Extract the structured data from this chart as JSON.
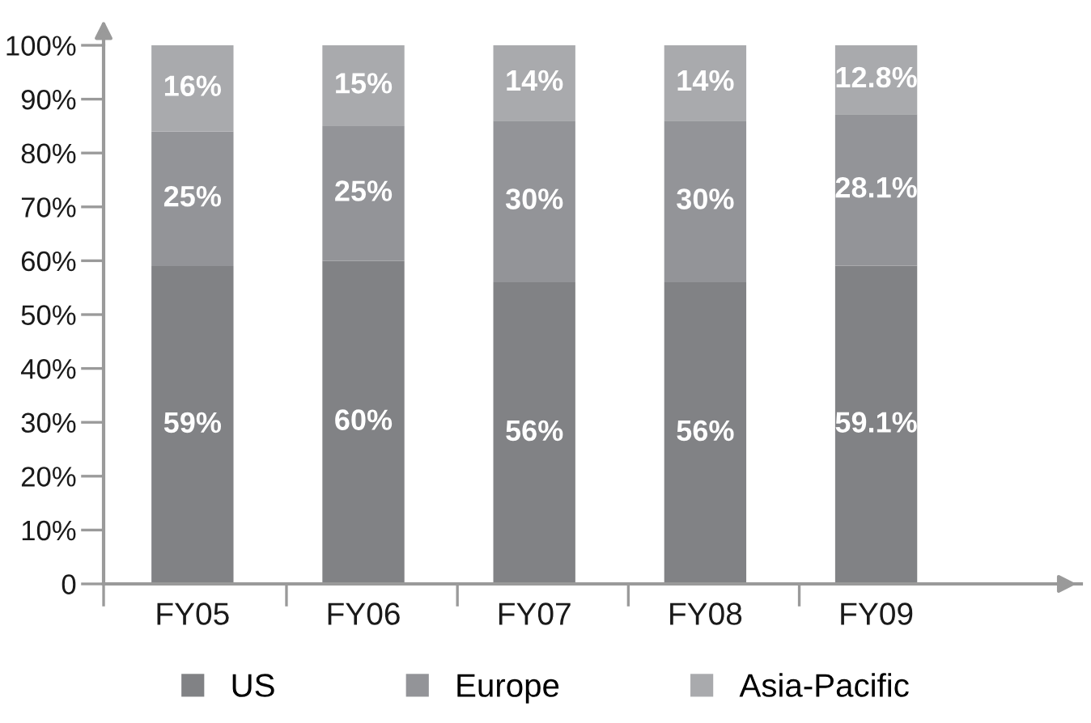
{
  "chart_data": {
    "type": "bar",
    "stacked": true,
    "categories": [
      "FY05",
      "FY06",
      "FY07",
      "FY08",
      "FY09"
    ],
    "series": [
      {
        "name": "US",
        "color": "#818285",
        "values": [
          59,
          60,
          56,
          56,
          59.1
        ],
        "value_labels": [
          "59%",
          "60%",
          "56%",
          "56%",
          "59.1%"
        ]
      },
      {
        "name": "Europe",
        "color": "#939498",
        "values": [
          25,
          25,
          30,
          30,
          28.1
        ],
        "value_labels": [
          "25%",
          "25%",
          "30%",
          "30%",
          "28.1%"
        ]
      },
      {
        "name": "Asia-Pacific",
        "color": "#a9aaad",
        "values": [
          16,
          15,
          14,
          14,
          12.8
        ],
        "value_labels": [
          "16%",
          "15%",
          "14%",
          "14%",
          "12.8%"
        ]
      }
    ],
    "ylim": [
      0,
      100
    ],
    "yticks": [
      0,
      {
        "value": 10,
        "label": "10%"
      },
      {
        "value": 20,
        "label": "20%"
      },
      {
        "value": 30,
        "label": "30%"
      },
      {
        "value": 40,
        "label": "40%"
      },
      {
        "value": 50,
        "label": "50%"
      },
      {
        "value": 60,
        "label": "60%"
      },
      {
        "value": 70,
        "label": "70%"
      },
      {
        "value": 80,
        "label": "80%"
      },
      {
        "value": 90,
        "label": "90%"
      },
      {
        "value": 100,
        "label": "100%"
      }
    ],
    "grid": false,
    "legend": "bottom"
  }
}
